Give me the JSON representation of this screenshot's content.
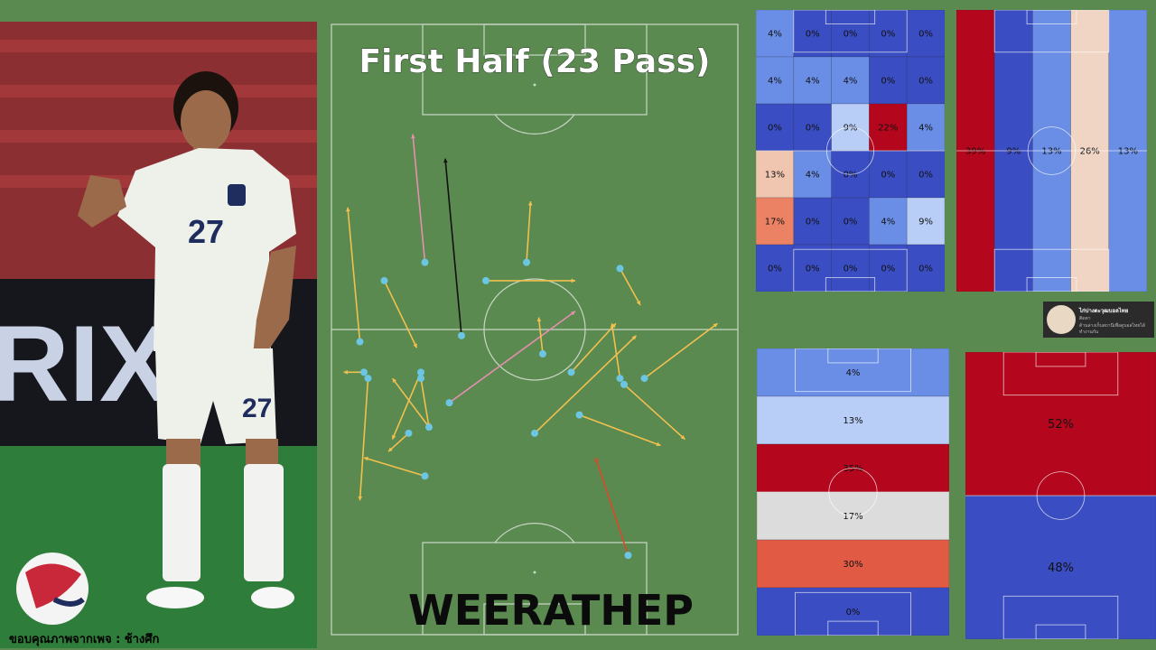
{
  "title": "First Half (23 Pass)",
  "player_name": "WEERATHEP",
  "photo": {
    "credit": "ขอบคุณภาพจากเพจ : ช้างศึก",
    "shirt_number": "27",
    "banner_text": "RIX"
  },
  "badge": {
    "name": "ไก่ปางตะวุฒบอลไทย",
    "lines": [
      "ติดตา",
      "ด้านล่างเก็บสถานีเพื่อดูบอลไทยได้",
      "ทำงานกัน"
    ]
  },
  "colors": {
    "pitch": "#5a8a50",
    "line": "#c8d6c4",
    "pass_default": "#f2c04e",
    "pass_key": "#e58fb0",
    "pass_long": "#111111",
    "pass_back": "#d94a2a",
    "marker": "#6cc5e2"
  },
  "chart_data": [
    {
      "type": "pass_map",
      "title": "First Half (23 Pass)",
      "pitch": {
        "length": 100,
        "width": 100
      },
      "passes": [
        {
          "start": [
            7,
            48
          ],
          "end": [
            4,
            70
          ],
          "kind": "normal"
        },
        {
          "start": [
            23,
            61
          ],
          "end": [
            20,
            82
          ],
          "kind": "pink"
        },
        {
          "start": [
            32,
            49
          ],
          "end": [
            28,
            78
          ],
          "kind": "black"
        },
        {
          "start": [
            48,
            61
          ],
          "end": [
            49,
            71
          ],
          "kind": "normal"
        },
        {
          "start": [
            38,
            58
          ],
          "end": [
            60,
            58
          ],
          "kind": "normal"
        },
        {
          "start": [
            71,
            60
          ],
          "end": [
            76,
            54
          ],
          "kind": "normal"
        },
        {
          "start": [
            13,
            58
          ],
          "end": [
            21,
            47
          ],
          "kind": "normal"
        },
        {
          "start": [
            29,
            38
          ],
          "end": [
            60,
            53
          ],
          "kind": "pink"
        },
        {
          "start": [
            52,
            46
          ],
          "end": [
            51,
            52
          ],
          "kind": "normal"
        },
        {
          "start": [
            59,
            43
          ],
          "end": [
            70,
            51
          ],
          "kind": "normal"
        },
        {
          "start": [
            71,
            42
          ],
          "end": [
            69,
            51
          ],
          "kind": "normal"
        },
        {
          "start": [
            77,
            42
          ],
          "end": [
            95,
            51
          ],
          "kind": "normal"
        },
        {
          "start": [
            8,
            43
          ],
          "end": [
            3,
            43
          ],
          "kind": "normal"
        },
        {
          "start": [
            22,
            43
          ],
          "end": [
            15,
            32
          ],
          "kind": "normal"
        },
        {
          "start": [
            24,
            34
          ],
          "end": [
            15,
            42
          ],
          "kind": "normal"
        },
        {
          "start": [
            19,
            33
          ],
          "end": [
            14,
            30
          ],
          "kind": "normal"
        },
        {
          "start": [
            22,
            42
          ],
          "end": [
            24,
            34
          ],
          "kind": "normal"
        },
        {
          "start": [
            9,
            42
          ],
          "end": [
            7,
            22
          ],
          "kind": "normal"
        },
        {
          "start": [
            23,
            26
          ],
          "end": [
            8,
            29
          ],
          "kind": "normal"
        },
        {
          "start": [
            50,
            33
          ],
          "end": [
            75,
            49
          ],
          "kind": "normal"
        },
        {
          "start": [
            61,
            36
          ],
          "end": [
            81,
            31
          ],
          "kind": "normal"
        },
        {
          "start": [
            72,
            41
          ],
          "end": [
            87,
            32
          ],
          "kind": "normal"
        },
        {
          "start": [
            73,
            13
          ],
          "end": [
            65,
            29
          ],
          "kind": "back"
        }
      ]
    },
    {
      "type": "heatmap",
      "title": "",
      "rows": [
        [
          "4%",
          "0%",
          "0%",
          "0%",
          "0%"
        ],
        [
          "4%",
          "4%",
          "4%",
          "0%",
          "0%"
        ],
        [
          "0%",
          "0%",
          "9%",
          "22%",
          "4%"
        ],
        [
          "13%",
          "4%",
          "0%",
          "0%",
          "0%"
        ],
        [
          "17%",
          "0%",
          "0%",
          "4%",
          "9%"
        ],
        [
          "0%",
          "0%",
          "0%",
          "0%",
          "0%"
        ]
      ],
      "colors": [
        [
          "#6a8ee6",
          "#3a4dc2",
          "#3a4dc2",
          "#3a4dc2",
          "#3a4dc2"
        ],
        [
          "#6a8ee6",
          "#6a8ee6",
          "#6a8ee6",
          "#3a4dc2",
          "#3a4dc2"
        ],
        [
          "#3a4dc2",
          "#3a4dc2",
          "#b9cef6",
          "#b4061c",
          "#6a8ee6"
        ],
        [
          "#f0c6b0",
          "#6a8ee6",
          "#3a4dc2",
          "#3a4dc2",
          "#3a4dc2"
        ],
        [
          "#ec8264",
          "#3a4dc2",
          "#3a4dc2",
          "#6a8ee6",
          "#b9cef6"
        ],
        [
          "#3a4dc2",
          "#3a4dc2",
          "#3a4dc2",
          "#3a4dc2",
          "#3a4dc2"
        ]
      ]
    },
    {
      "type": "heatmap",
      "title": "",
      "columns": [
        "39%",
        "9%",
        "13%",
        "26%",
        "13%"
      ],
      "colors": [
        "#b4061c",
        "#3a4dc2",
        "#6a8ee6",
        "#f0d4c4",
        "#6a8ee6"
      ]
    },
    {
      "type": "heatmap",
      "title": "",
      "rows": [
        "4%",
        "13%",
        "35%",
        "17%",
        "30%",
        "0%"
      ],
      "colors": [
        "#6a8ee6",
        "#b9cef6",
        "#b4061c",
        "#dcdcdc",
        "#e05a44",
        "#3a4dc2"
      ]
    },
    {
      "type": "heatmap",
      "title": "",
      "rows": [
        "52%",
        "48%"
      ],
      "colors": [
        "#b4061c",
        "#3a4dc2"
      ]
    }
  ]
}
